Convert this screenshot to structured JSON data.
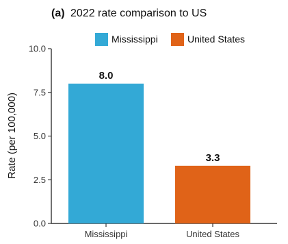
{
  "chart_data": {
    "type": "bar",
    "title_prefix": "(a)",
    "title": "2022 rate comparison to US",
    "ylabel": "Rate (per 100,000)",
    "xlabel": "",
    "categories": [
      "Mississippi",
      "United States"
    ],
    "values": [
      8.0,
      3.3
    ],
    "value_labels": [
      "8.0",
      "3.3"
    ],
    "colors": [
      "#33a9d6",
      "#e06318"
    ],
    "ylim": [
      0,
      10
    ],
    "yticks": [
      0,
      2.5,
      5,
      7.5,
      10
    ],
    "ytick_labels": [
      "0.0",
      "2.5",
      "5.0",
      "7.5",
      "10.0"
    ],
    "legend": {
      "placement": "top-center",
      "entries": [
        {
          "label": "Mississippi",
          "color": "#33a9d6"
        },
        {
          "label": "United States",
          "color": "#e06318"
        }
      ]
    },
    "grid": false
  }
}
